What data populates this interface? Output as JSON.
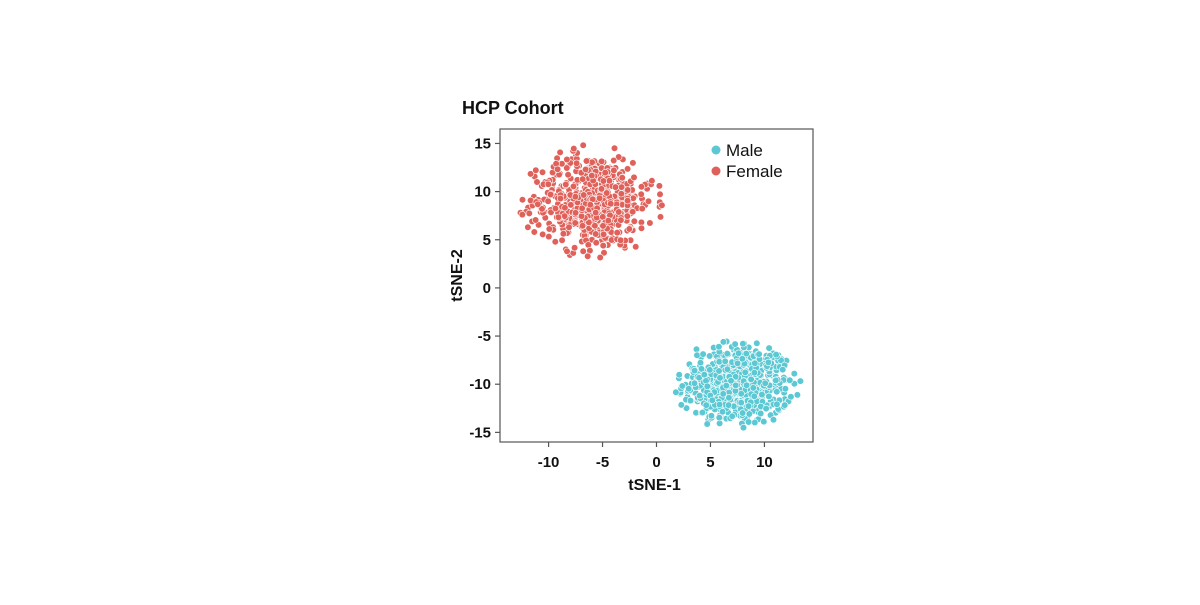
{
  "chart_data": {
    "type": "scatter",
    "title": "HCP Cohort",
    "xlabel": "tSNE-1",
    "ylabel": "tSNE-2",
    "xlim": [
      -14.5,
      14.5
    ],
    "ylim": [
      -16,
      16.5
    ],
    "xticks": [
      -10,
      -5,
      0,
      5,
      10
    ],
    "yticks": [
      15,
      10,
      5,
      0,
      -5,
      -10,
      -15
    ],
    "grid": false,
    "legend_position": "top-right",
    "series": [
      {
        "name": "Male",
        "color": "#5bc8d3",
        "cluster": {
          "x_range": [
            1.5,
            13.5
          ],
          "y_range": [
            -14.5,
            -4.5
          ],
          "center": [
            7.5,
            -10
          ],
          "n_points": 600
        }
      },
      {
        "name": "Female",
        "color": "#e0615a",
        "cluster": {
          "x_range": [
            -13,
            0.5
          ],
          "y_range": [
            3,
            15
          ],
          "center": [
            -6,
            9
          ],
          "n_points": 600
        }
      }
    ]
  }
}
